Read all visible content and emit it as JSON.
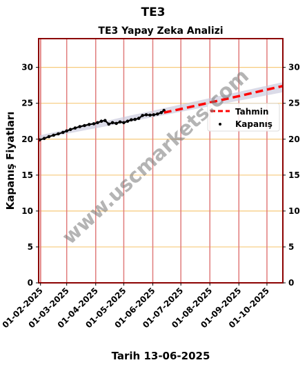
{
  "page_title": "TE3",
  "watermark": "www.uscmarkets.com",
  "colors": {
    "frame": "#8b0000",
    "hgrid": "#f7c97a",
    "vgrid": "#e07b7b",
    "forecast": "#ff0000",
    "actual": "#000000",
    "trend_band": "#c8c8dc"
  },
  "chart_data": {
    "type": "line",
    "title": "TE3 Yapay Zeka Analizi",
    "xlabel": "Tarih 13-06-2025",
    "ylabel": "Kapanış Fiyatları",
    "ylim": [
      0,
      34
    ],
    "xlim": [
      "2025-01-30",
      "2025-10-18"
    ],
    "x_ticks": [
      "01-02-2025",
      "01-03-2025",
      "01-04-2025",
      "01-05-2025",
      "01-06-2025",
      "01-07-2025",
      "01-08-2025",
      "01-09-2025",
      "01-10-2025"
    ],
    "y_ticks": [
      0,
      5,
      10,
      15,
      20,
      25,
      30
    ],
    "grid": true,
    "legend_position": "right",
    "series": [
      {
        "name": "Tahmin",
        "style": "dashed",
        "x": [
          "2025-06-13",
          "2025-07-01",
          "2025-08-01",
          "2025-09-01",
          "2025-10-01",
          "2025-10-18"
        ],
        "y": [
          23.7,
          24.2,
          25.1,
          26.0,
          26.9,
          27.4
        ]
      },
      {
        "name": "Kapanış",
        "style": "markers",
        "x": [
          "2025-01-31",
          "2025-02-05",
          "2025-02-10",
          "2025-02-15",
          "2025-02-20",
          "2025-02-25",
          "2025-03-01",
          "2025-03-05",
          "2025-03-10",
          "2025-03-15",
          "2025-03-20",
          "2025-03-25",
          "2025-03-30",
          "2025-04-03",
          "2025-04-07",
          "2025-04-11",
          "2025-04-15",
          "2025-04-19",
          "2025-04-23",
          "2025-04-27",
          "2025-05-01",
          "2025-05-05",
          "2025-05-09",
          "2025-05-13",
          "2025-05-17",
          "2025-05-21",
          "2025-05-25",
          "2025-05-29",
          "2025-06-02",
          "2025-06-06",
          "2025-06-10",
          "2025-06-13"
        ],
        "y": [
          19.9,
          20.1,
          20.35,
          20.55,
          20.75,
          20.95,
          21.15,
          21.35,
          21.55,
          21.75,
          21.9,
          22.05,
          22.15,
          22.3,
          22.5,
          22.6,
          22.1,
          22.3,
          22.2,
          22.4,
          22.3,
          22.5,
          22.7,
          22.75,
          22.9,
          23.3,
          23.4,
          23.35,
          23.4,
          23.5,
          23.7,
          24.0
        ]
      }
    ]
  }
}
